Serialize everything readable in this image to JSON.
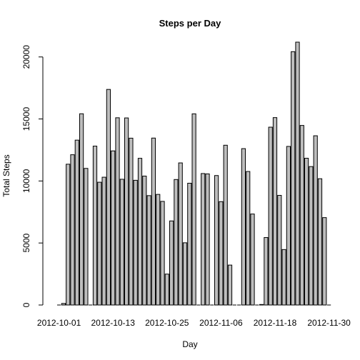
{
  "chart_data": {
    "type": "bar",
    "title": "Steps per Day",
    "xlabel": "Day",
    "ylabel": "Total Steps",
    "ylim": [
      0,
      21194
    ],
    "yticks": [
      0,
      5000,
      10000,
      15000,
      20000
    ],
    "ytick_labels": [
      "0",
      "5000",
      "10000",
      "15000",
      "20000"
    ],
    "xtick_labels": [
      {
        "label": "2012-10-01",
        "index": 0
      },
      {
        "label": "2012-10-13",
        "index": 12
      },
      {
        "label": "2012-10-25",
        "index": 24
      },
      {
        "label": "2012-11-06",
        "index": 36
      },
      {
        "label": "2012-11-18",
        "index": 48
      },
      {
        "label": "2012-11-30",
        "index": 60
      }
    ],
    "grid": false,
    "categories": [
      "2012-10-01",
      "2012-10-02",
      "2012-10-03",
      "2012-10-04",
      "2012-10-05",
      "2012-10-06",
      "2012-10-07",
      "2012-10-08",
      "2012-10-09",
      "2012-10-10",
      "2012-10-11",
      "2012-10-12",
      "2012-10-13",
      "2012-10-14",
      "2012-10-15",
      "2012-10-16",
      "2012-10-17",
      "2012-10-18",
      "2012-10-19",
      "2012-10-20",
      "2012-10-21",
      "2012-10-22",
      "2012-10-23",
      "2012-10-24",
      "2012-10-25",
      "2012-10-26",
      "2012-10-27",
      "2012-10-28",
      "2012-10-29",
      "2012-10-30",
      "2012-10-31",
      "2012-11-01",
      "2012-11-02",
      "2012-11-03",
      "2012-11-04",
      "2012-11-05",
      "2012-11-06",
      "2012-11-07",
      "2012-11-08",
      "2012-11-09",
      "2012-11-10",
      "2012-11-11",
      "2012-11-12",
      "2012-11-13",
      "2012-11-14",
      "2012-11-15",
      "2012-11-16",
      "2012-11-17",
      "2012-11-18",
      "2012-11-19",
      "2012-11-20",
      "2012-11-21",
      "2012-11-22",
      "2012-11-23",
      "2012-11-24",
      "2012-11-25",
      "2012-11-26",
      "2012-11-27",
      "2012-11-28",
      "2012-11-29",
      "2012-11-30"
    ],
    "values": [
      0,
      126,
      11352,
      12116,
      13294,
      15420,
      11015,
      0,
      12811,
      9900,
      10304,
      17382,
      12426,
      15098,
      10139,
      15084,
      13452,
      10056,
      11829,
      10395,
      8821,
      13460,
      8918,
      8355,
      2492,
      6778,
      10119,
      11458,
      5018,
      9819,
      15414,
      0,
      10600,
      10571,
      0,
      10439,
      8334,
      12883,
      3219,
      0,
      0,
      12608,
      10765,
      7336,
      0,
      41,
      5441,
      14339,
      15110,
      8841,
      4472,
      12787,
      20427,
      21194,
      14478,
      11834,
      11162,
      13646,
      10183,
      7047,
      0
    ]
  }
}
